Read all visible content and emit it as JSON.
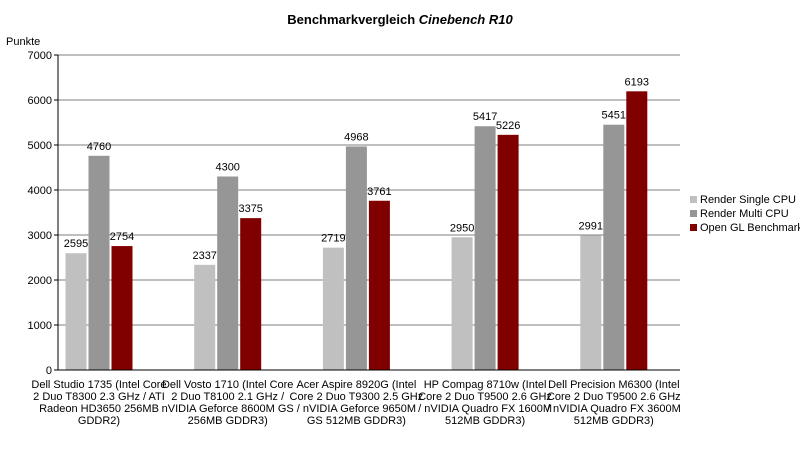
{
  "chart_data": {
    "type": "bar",
    "title": "Benchmarkvergleich",
    "title_italic": "Cinebench R10",
    "y_label": "Punkte",
    "categories": [
      [
        "Dell Studio 1735 (Intel Core",
        "2 Duo T8300 2.3 GHz / ATI",
        "Radeon HD3650 256MB",
        "GDDR2)"
      ],
      [
        "Dell Vosto 1710 (Intel Core",
        "2 Duo T8100 2.1 GHz /",
        "nVIDIA Geforce 8600M GS",
        "256MB GDDR3)"
      ],
      [
        "Acer Aspire 8920G (Intel",
        "Core 2 Duo T9300 2.5 GHz",
        "/ nVIDIA Geforce 9650M",
        "GS 512MB GDDR3)"
      ],
      [
        "HP Compag 8710w (Intel",
        "Core 2 Duo T9500 2.6 GHz",
        "/ nVIDIA Quadro FX 1600M",
        "512MB GDDR3)"
      ],
      [
        "Dell Precision M6300 (Intel",
        "Core 2 Duo T9500 2.6 GHz",
        "/ nVIDIA Quadro FX 3600M",
        "512MB GDDR3)"
      ]
    ],
    "series": [
      {
        "name": "Render Single CPU",
        "color": "#c0c0c0",
        "values": [
          2595,
          2337,
          2719,
          2950,
          2991
        ]
      },
      {
        "name": "Render Multi CPU",
        "color": "#969696",
        "values": [
          4760,
          4300,
          4968,
          5417,
          5451
        ]
      },
      {
        "name": "Open GL Benchmark",
        "color": "#800000",
        "values": [
          2754,
          3375,
          3761,
          5226,
          6193
        ]
      }
    ],
    "ylim": [
      0,
      7000
    ],
    "yticks": [
      0,
      1000,
      2000,
      3000,
      4000,
      5000,
      6000,
      7000
    ],
    "grid": true,
    "legend": "right"
  }
}
